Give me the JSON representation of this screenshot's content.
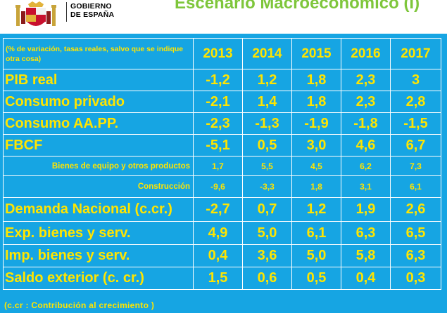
{
  "header": {
    "logo_line1": "GOBIERNO",
    "logo_line2": "DE ESPAÑA",
    "title": "Escenario Macroeconómico (I)"
  },
  "table": {
    "note": "(% de variación, tasas reales,  salvo que se indique otra cosa)",
    "years": [
      "2013",
      "2014",
      "2015",
      "2016",
      "2017"
    ],
    "rows": [
      {
        "label": "PIB real",
        "values": [
          "-1,2",
          "1,2",
          "1,8",
          "2,3",
          "3"
        ]
      },
      {
        "label": "Consumo privado",
        "values": [
          "-2,1",
          "1,4",
          "1,8",
          "2,3",
          "2,8"
        ]
      },
      {
        "label": "Consumo  AA.PP.",
        "values": [
          "-2,3",
          "-1,3",
          "-1,9",
          "-1,8",
          "-1,5"
        ]
      },
      {
        "label": "FBCF",
        "values": [
          "-5,1",
          "0,5",
          "3,0",
          "4,6",
          "6,7"
        ]
      },
      {
        "label": "Bienes de equipo y otros productos",
        "values": [
          "1,7",
          "5,5",
          "4,5",
          "6,2",
          "7,3"
        ]
      },
      {
        "label": "Construcción",
        "values": [
          "-9,6",
          "-3,3",
          "1,8",
          "3,1",
          "6,1"
        ]
      },
      {
        "label": "Demanda Nacional  (c.cr.)",
        "values": [
          "-2,7",
          "0,7",
          "1,2",
          "1,9",
          "2,6"
        ]
      },
      {
        "label": "Exp.  bienes y  serv.",
        "values": [
          "4,9",
          "5,0",
          "6,1",
          "6,3",
          "6,5"
        ]
      },
      {
        "label": "Imp.  bienes y serv.",
        "values": [
          "0,4",
          "3,6",
          "5,0",
          "5,8",
          "6,3"
        ]
      },
      {
        "label": "Saldo exterior  (c. cr.)",
        "values": [
          "1,5",
          "0,6",
          "0,5",
          "0,4",
          "0,3"
        ]
      }
    ]
  },
  "footnote": "(c.cr : Contribución al crecimiento )",
  "colors": {
    "background": "#16a5e3",
    "text": "#ffe500",
    "title": "#7ec63b",
    "grid": "#ffffff"
  }
}
